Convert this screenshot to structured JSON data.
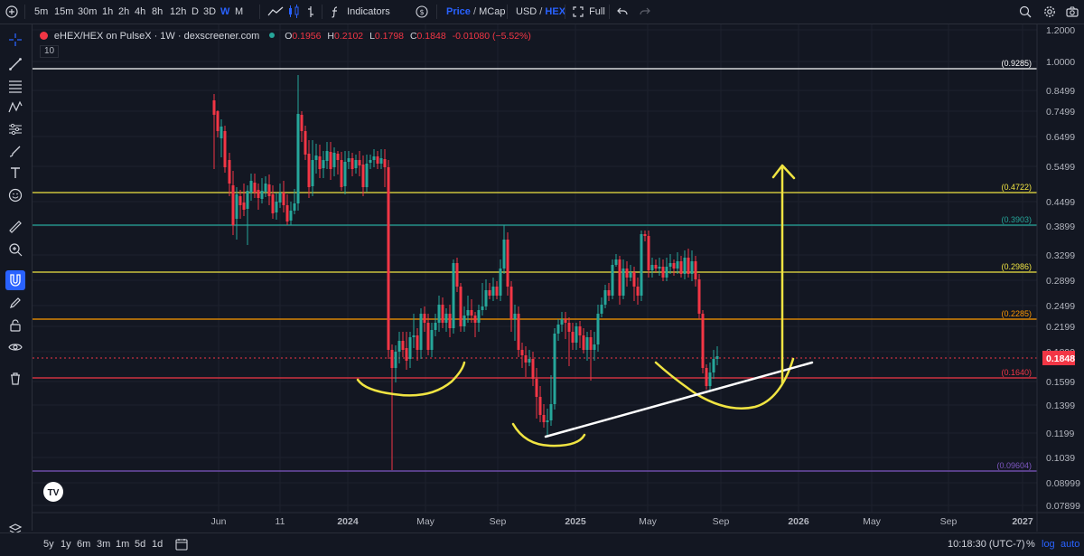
{
  "topbar": {
    "timeframes": [
      "5m",
      "15m",
      "30m",
      "1h",
      "2h",
      "4h",
      "8h",
      "12h",
      "D",
      "3D",
      "W",
      "M"
    ],
    "active_timeframe": "W",
    "indicators_label": "Indicators",
    "price_label": "Price",
    "slash1": "/",
    "mcap_label": "MCap",
    "usd_label": "USD",
    "slash2": "/",
    "hex_label": "HEX",
    "full_label": "Full"
  },
  "legend": {
    "symbol": "eHEX/HEX on PulseX · 1W · dexscreener.com",
    "o_key": "O",
    "o_val": "0.1956",
    "h_key": "H",
    "h_val": "0.2102",
    "l_key": "L",
    "l_val": "0.1798",
    "c_key": "C",
    "c_val": "0.1848",
    "change": "-0.01080 (−5.52%)",
    "volume_badge": "10"
  },
  "price_axis": {
    "ticks": [
      "1.2000",
      "1.0000",
      "0.8499",
      "0.7499",
      "0.6499",
      "0.5499",
      "0.4499",
      "0.3899",
      "0.3299",
      "0.2899",
      "0.2499",
      "0.2199",
      "0.1899",
      "0.1599",
      "0.1399",
      "0.1199",
      "0.1039",
      "0.08999",
      "0.07899"
    ],
    "current_price": "0.1848"
  },
  "time_axis": [
    "Jun",
    "11",
    "2024",
    "May",
    "Sep",
    "2025",
    "May",
    "Sep",
    "2026",
    "May",
    "Sep",
    "2027"
  ],
  "lines": [
    {
      "label": "(0.9285)",
      "color": "#ffffff"
    },
    {
      "label": "(0.4722)",
      "color": "#f0e442"
    },
    {
      "label": "(0.3903)",
      "color": "#26a69a"
    },
    {
      "label": "(0.2986)",
      "color": "#f0e442"
    },
    {
      "label": "(0.2285)",
      "color": "#ff9800"
    },
    {
      "label": "(0.1640)",
      "color": "#f23645"
    },
    {
      "label": "(0.09604)",
      "color": "#7e57c2"
    }
  ],
  "bottombar": {
    "ranges": [
      "5y",
      "1y",
      "6m",
      "3m",
      "1m",
      "5d",
      "1d"
    ],
    "clock": "10:18:30 (UTC-7)",
    "percent": "%",
    "log": "log",
    "auto": "auto"
  },
  "colors": {
    "up": "#26a69a",
    "down": "#f23645",
    "accent": "#2962ff",
    "drawing": "#f0e442"
  }
}
